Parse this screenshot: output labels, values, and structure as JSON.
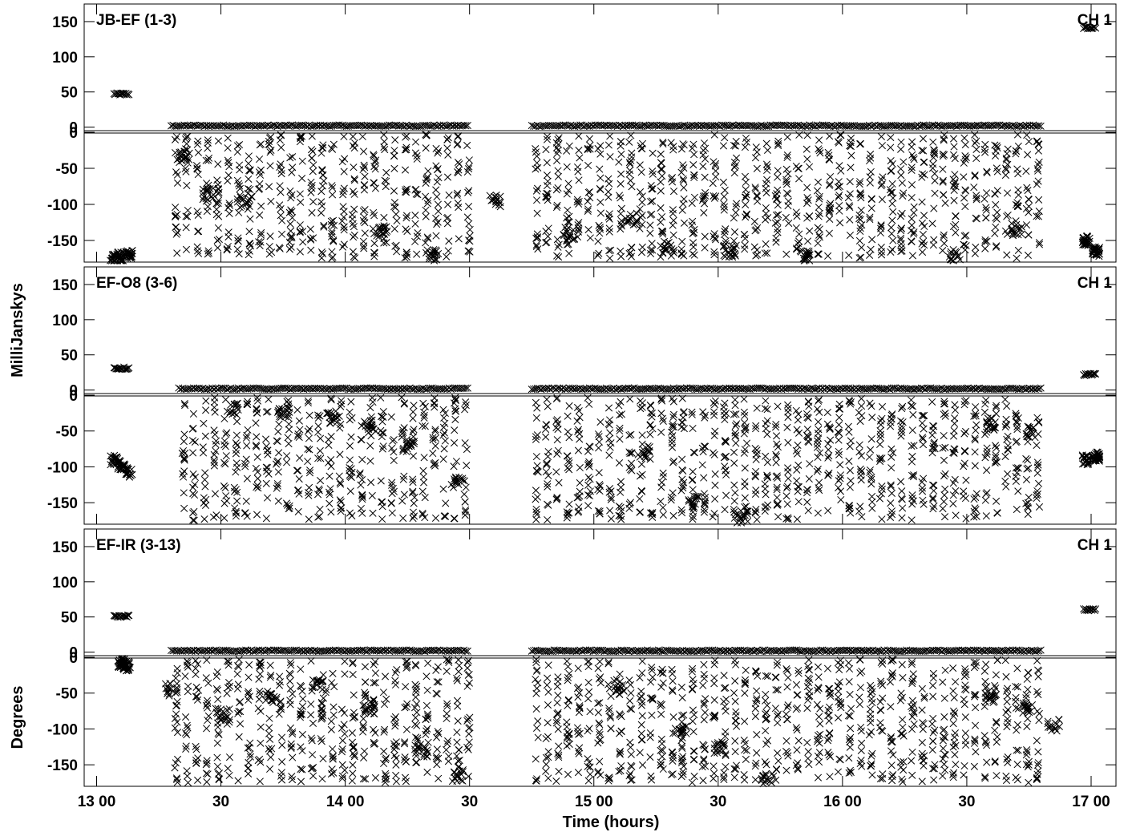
{
  "chart_data": [
    {
      "type": "scatter",
      "baseline": "JB-EF (1-3)",
      "channel": "CH 1",
      "amplitude": [
        {
          "t": 13.07,
          "v": 48
        },
        {
          "t": 13.1,
          "v": 47
        },
        {
          "t": 13.13,
          "v": 48
        },
        {
          "t": 13.3,
          "v": 2
        },
        {
          "t": 14.5,
          "v": 2
        },
        {
          "t": 14.75,
          "v": 2
        },
        {
          "t": 16.8,
          "v": 2
        },
        {
          "t": 16.97,
          "v": 143
        },
        {
          "t": 17.0,
          "v": 141
        },
        {
          "t": 17.02,
          "v": 142
        }
      ],
      "phase": [
        {
          "t": 13.07,
          "v": -176
        },
        {
          "t": 13.1,
          "v": -172
        },
        {
          "t": 13.13,
          "v": -170
        },
        {
          "t": 13.35,
          "v": -35
        },
        {
          "t": 13.45,
          "v": -85
        },
        {
          "t": 13.6,
          "v": -95
        },
        {
          "t": 14.15,
          "v": -140
        },
        {
          "t": 14.35,
          "v": -170
        },
        {
          "t": 14.6,
          "v": -95
        },
        {
          "t": 14.9,
          "v": -140
        },
        {
          "t": 15.15,
          "v": -120
        },
        {
          "t": 15.3,
          "v": -160
        },
        {
          "t": 15.55,
          "v": -165
        },
        {
          "t": 15.85,
          "v": -170
        },
        {
          "t": 16.45,
          "v": -170
        },
        {
          "t": 16.7,
          "v": -135
        },
        {
          "t": 16.98,
          "v": -150
        },
        {
          "t": 17.02,
          "v": -165
        }
      ]
    },
    {
      "type": "scatter",
      "baseline": "EF-O8 (3-6)",
      "channel": "CH 1",
      "amplitude": [
        {
          "t": 13.07,
          "v": 32
        },
        {
          "t": 13.1,
          "v": 31
        },
        {
          "t": 13.13,
          "v": 32
        },
        {
          "t": 13.33,
          "v": 2
        },
        {
          "t": 14.5,
          "v": 2
        },
        {
          "t": 14.75,
          "v": 2
        },
        {
          "t": 16.8,
          "v": 2
        },
        {
          "t": 16.97,
          "v": 23
        },
        {
          "t": 17.0,
          "v": 22
        },
        {
          "t": 17.02,
          "v": 23
        }
      ],
      "phase": [
        {
          "t": 13.07,
          "v": -90
        },
        {
          "t": 13.1,
          "v": -98
        },
        {
          "t": 13.13,
          "v": -108
        },
        {
          "t": 13.55,
          "v": -20
        },
        {
          "t": 13.75,
          "v": -25
        },
        {
          "t": 13.95,
          "v": -30
        },
        {
          "t": 14.1,
          "v": -45
        },
        {
          "t": 14.25,
          "v": -70
        },
        {
          "t": 14.45,
          "v": -120
        },
        {
          "t": 15.2,
          "v": -80
        },
        {
          "t": 15.4,
          "v": -150
        },
        {
          "t": 15.6,
          "v": -170
        },
        {
          "t": 16.6,
          "v": -40
        },
        {
          "t": 16.75,
          "v": -50
        },
        {
          "t": 16.98,
          "v": -90
        },
        {
          "t": 17.02,
          "v": -85
        }
      ]
    },
    {
      "type": "scatter",
      "baseline": "EF-IR (3-13)",
      "channel": "CH 1",
      "amplitude": [
        {
          "t": 13.07,
          "v": 52
        },
        {
          "t": 13.1,
          "v": 51
        },
        {
          "t": 13.13,
          "v": 52
        },
        {
          "t": 13.3,
          "v": 2
        },
        {
          "t": 14.5,
          "v": 2
        },
        {
          "t": 14.75,
          "v": 2
        },
        {
          "t": 16.8,
          "v": 2
        },
        {
          "t": 16.97,
          "v": 61
        },
        {
          "t": 17.0,
          "v": 60
        },
        {
          "t": 17.02,
          "v": 61
        }
      ],
      "phase": [
        {
          "t": 13.1,
          "v": -8
        },
        {
          "t": 13.12,
          "v": -12
        },
        {
          "t": 13.3,
          "v": -45
        },
        {
          "t": 13.5,
          "v": -80
        },
        {
          "t": 13.7,
          "v": -55
        },
        {
          "t": 13.9,
          "v": -40
        },
        {
          "t": 14.1,
          "v": -70
        },
        {
          "t": 14.3,
          "v": -130
        },
        {
          "t": 14.45,
          "v": -165
        },
        {
          "t": 15.1,
          "v": -40
        },
        {
          "t": 15.35,
          "v": -100
        },
        {
          "t": 15.5,
          "v": -125
        },
        {
          "t": 15.7,
          "v": -170
        },
        {
          "t": 16.6,
          "v": -55
        },
        {
          "t": 16.75,
          "v": -70
        },
        {
          "t": 16.85,
          "v": -95
        }
      ]
    }
  ],
  "axes": {
    "x": {
      "label": "Time (hours)",
      "range_hours": [
        12.95,
        17.1
      ],
      "ticks": [
        {
          "t": 13.0,
          "label": "13 00"
        },
        {
          "t": 13.5,
          "label": "30"
        },
        {
          "t": 14.0,
          "label": "14 00"
        },
        {
          "t": 14.5,
          "label": "30"
        },
        {
          "t": 15.0,
          "label": "15 00"
        },
        {
          "t": 15.5,
          "label": "30"
        },
        {
          "t": 16.0,
          "label": "16 00"
        },
        {
          "t": 16.5,
          "label": "30"
        },
        {
          "t": 17.0,
          "label": "17 00"
        }
      ]
    },
    "amplitude_axis": {
      "label": "MilliJanskys",
      "range": [
        -5,
        175
      ],
      "ticks": [
        {
          "v": 150,
          "label": "150"
        },
        {
          "v": 100,
          "label": "100"
        },
        {
          "v": 50,
          "label": "50"
        },
        {
          "v": 0,
          "label": "0"
        }
      ]
    },
    "phase_axis": {
      "label": "Degrees",
      "range": [
        -180,
        0
      ],
      "ticks": [
        {
          "v": 0,
          "label": "0"
        },
        {
          "v": -50,
          "label": "-50"
        },
        {
          "v": -100,
          "label": "-100"
        },
        {
          "v": -150,
          "label": "-150"
        }
      ]
    }
  },
  "style": {
    "marker": "x",
    "marker_color": "#000000",
    "background": "#ffffff"
  }
}
